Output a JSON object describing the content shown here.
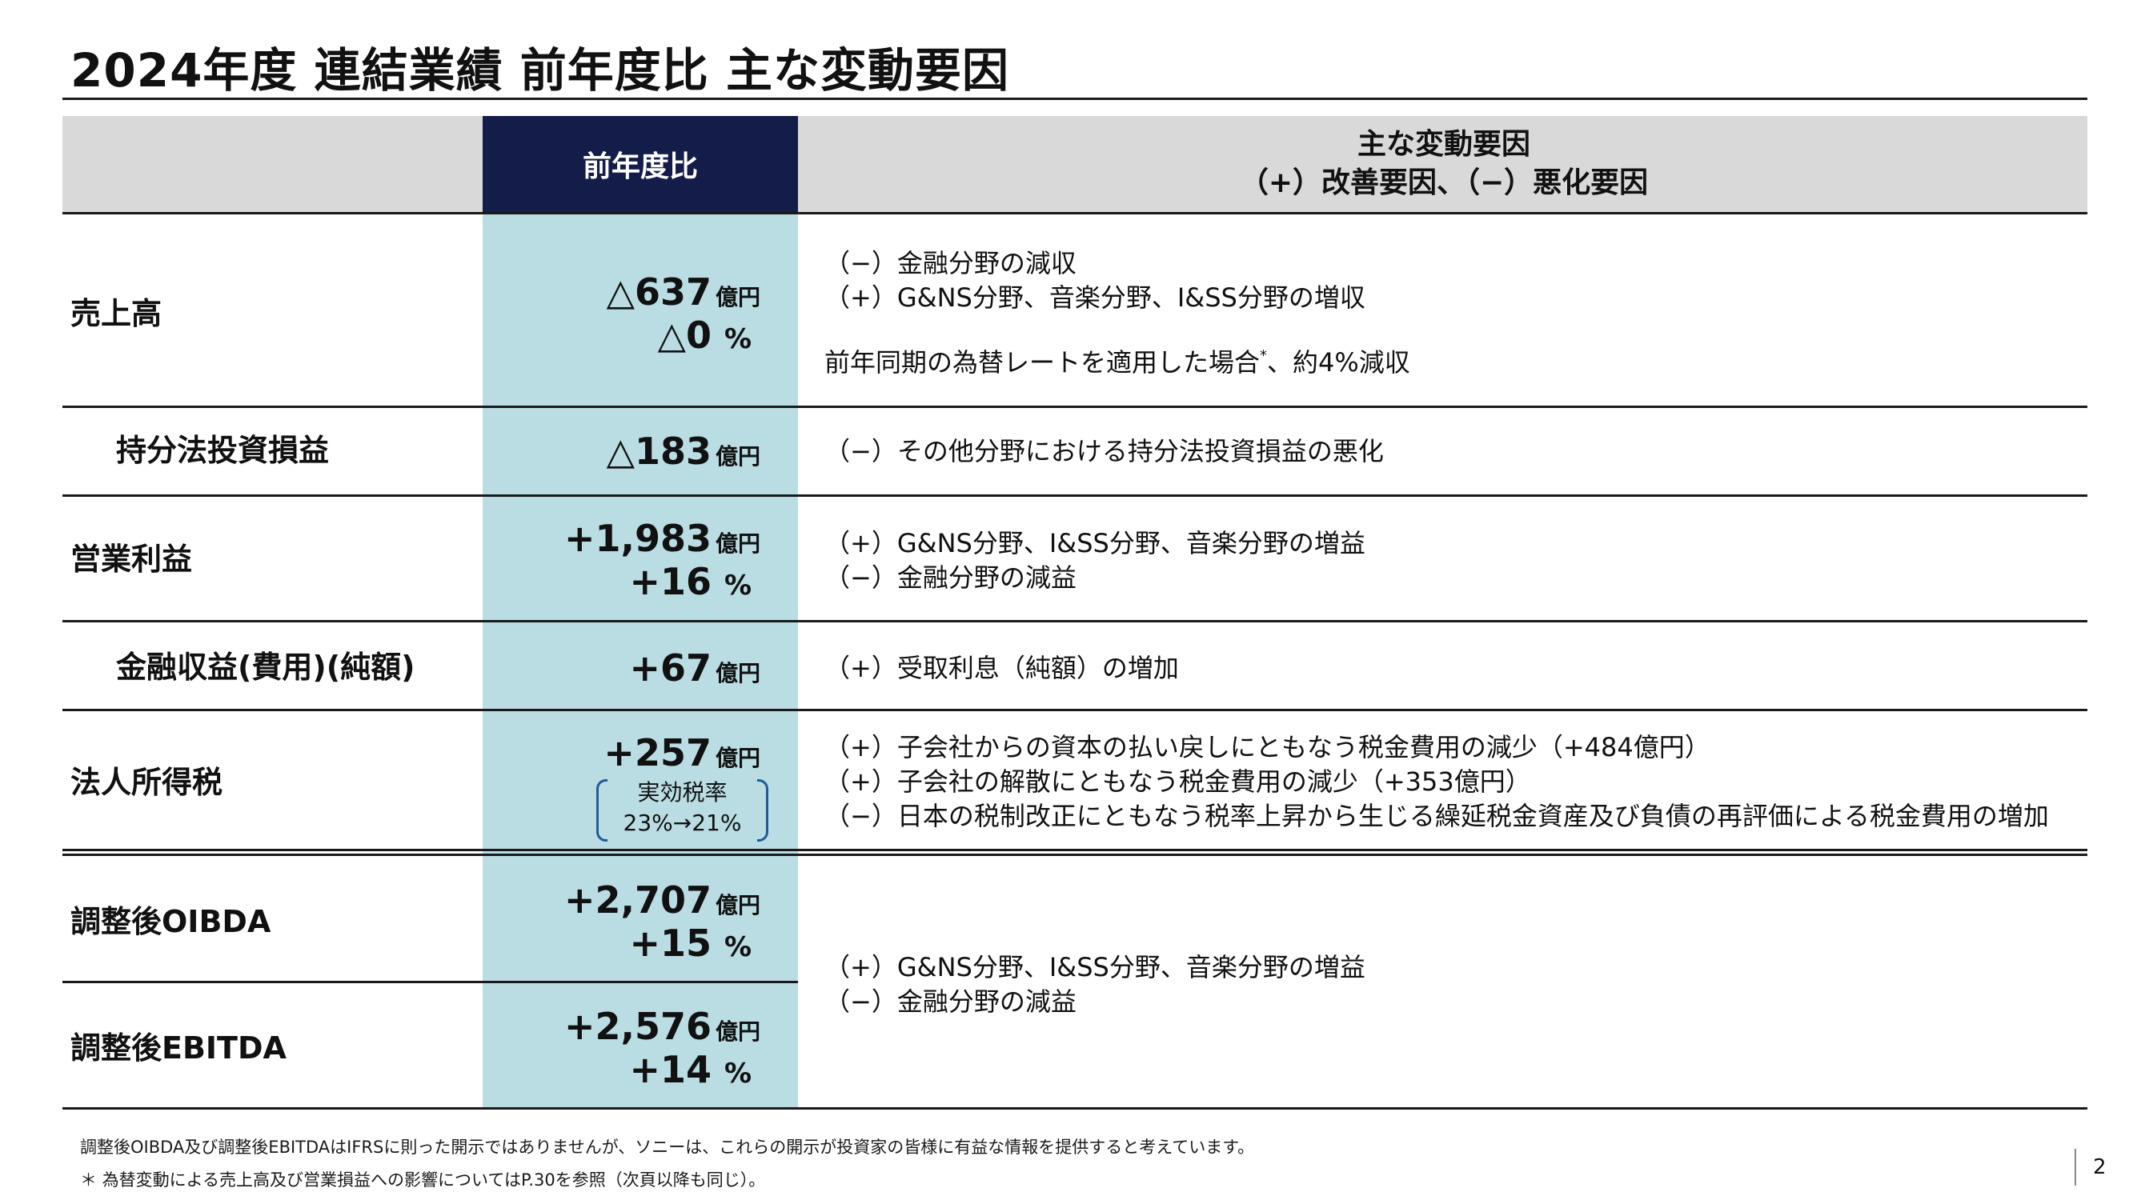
{
  "title": "2024年度 連結業績 前年度比 主な変動要因",
  "header": {
    "yoy_label": "前年度比",
    "factors_label_1": "主な変動要因",
    "factors_label_2": "（+）改善要因、（−）悪化要因"
  },
  "rows": [
    {
      "label": "売上高",
      "value": "△637",
      "unit": "億円",
      "pct": "△0",
      "pct_unit": "%",
      "factors": [
        "（−）金融分野の減収",
        "（+）G&NS分野、音楽分野、I&SS分野の増収"
      ],
      "note": "前年同期の為替レートを適用した場合",
      "note_mark": "*",
      "note_tail": "、約4%減収"
    },
    {
      "label": "持分法投資損益",
      "value": "△183",
      "unit": "億円",
      "factors": [
        "（−）その他分野における持分法投資損益の悪化"
      ]
    },
    {
      "label": "営業利益",
      "value": "+1,983",
      "unit": "億円",
      "pct": "+16",
      "pct_unit": "%",
      "factors": [
        "（+）G&NS分野、I&SS分野、音楽分野の増益",
        "（−）金融分野の減益"
      ]
    },
    {
      "label": "金融収益(費用)(純額)",
      "value": "+67",
      "unit": "億円",
      "factors": [
        "（+）受取利息（純額）の増加"
      ]
    },
    {
      "label": "法人所得税",
      "value": "+257",
      "unit": "億円",
      "tax_rate_label": "実効税率",
      "tax_rate_change": "23%→21%",
      "factors": [
        "（+）子会社からの資本の払い戻しにともなう税金費用の減少（+484億円）",
        "（+）子会社の解散にともなう税金費用の減少（+353億円）",
        "（−）日本の税制改正にともなう税率上昇から生じる繰延税金資産及び負債の再評価による税金費用の増加"
      ]
    },
    {
      "label": "調整後OIBDA",
      "value": "+2,707",
      "unit": "億円",
      "pct": "+15",
      "pct_unit": "%"
    },
    {
      "label": "調整後EBITDA",
      "value": "+2,576",
      "unit": "億円",
      "pct": "+14",
      "pct_unit": "%"
    }
  ],
  "shared_factors": [
    "（+）G&NS分野、I&SS分野、音楽分野の増益",
    "（−）金融分野の減益"
  ],
  "footnotes": [
    "調整後OIBDA及び調整後EBITDAはIFRSに則った開示ではありませんが、ソニーは、これらの開示が投資家の皆様に有益な情報を提供すると考えています。",
    "＊ 為替変動による売上高及び営業損益への影響についてはP.30を参照（次頁以降も同じ）。"
  ],
  "page_number": "2",
  "colors": {
    "header_navy": "#141c4a",
    "teal": "#b9dde3",
    "header_gray": "#d9d9d9",
    "bracket_blue": "#1f5a99"
  }
}
